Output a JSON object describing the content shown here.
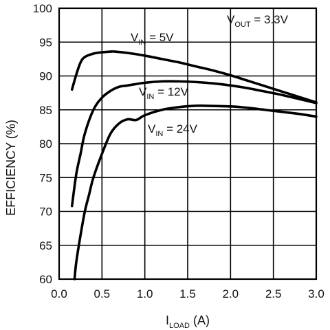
{
  "chart_data": {
    "type": "line",
    "xlabel": "I",
    "xlabel_sub": "LOAD",
    "xlabel_unit": " (A)",
    "ylabel": "EFFICIENCY (%)",
    "xlim": [
      0,
      3.0
    ],
    "ylim": [
      60,
      100
    ],
    "x_ticks": [
      "0.0",
      "0.5",
      "1.0",
      "1.5",
      "2.0",
      "2.5",
      "3.0"
    ],
    "y_ticks": [
      "60",
      "65",
      "70",
      "75",
      "80",
      "85",
      "90",
      "95",
      "100"
    ],
    "grid": true,
    "annotation": {
      "prefix": "V",
      "sub": "OUT",
      "suffix": " = 3.3V",
      "placement": "top-right"
    },
    "series": [
      {
        "name": "5V",
        "label_prefix": "V",
        "label_sub": "IN",
        "label_suffix": " = 5V",
        "x": [
          0.15,
          0.2,
          0.25,
          0.3,
          0.4,
          0.5,
          0.6,
          0.65,
          0.8,
          1.0,
          1.2,
          1.4,
          1.6,
          1.8,
          2.0,
          2.2,
          2.4,
          2.6,
          2.8,
          3.0
        ],
        "y": [
          88.0,
          90.2,
          92.0,
          92.8,
          93.3,
          93.5,
          93.6,
          93.6,
          93.4,
          93.0,
          92.5,
          92.0,
          91.4,
          90.8,
          90.1,
          89.3,
          88.5,
          87.7,
          86.9,
          86.1
        ]
      },
      {
        "name": "12V",
        "label_prefix": "V",
        "label_sub": "IN",
        "label_suffix": " = 12V",
        "x": [
          0.15,
          0.2,
          0.25,
          0.3,
          0.4,
          0.5,
          0.6,
          0.7,
          0.8,
          1.0,
          1.2,
          1.4,
          1.6,
          1.8,
          2.0,
          2.2,
          2.4,
          2.6,
          2.8,
          3.0
        ],
        "y": [
          70.8,
          75.5,
          78.5,
          81.5,
          85.0,
          86.8,
          87.8,
          88.4,
          88.6,
          89.0,
          89.2,
          89.2,
          89.1,
          88.9,
          88.6,
          88.2,
          87.7,
          87.2,
          86.6,
          86.0
        ]
      },
      {
        "name": "24V",
        "label_prefix": "V",
        "label_sub": "IN",
        "label_suffix": " = 24V",
        "x": [
          0.18,
          0.2,
          0.25,
          0.3,
          0.35,
          0.4,
          0.5,
          0.6,
          0.7,
          0.8,
          0.9,
          1.0,
          1.2,
          1.4,
          1.6,
          1.7,
          2.0,
          2.2,
          2.4,
          2.6,
          2.8,
          3.0
        ],
        "y": [
          60.0,
          62.5,
          66.5,
          70.0,
          72.5,
          75.0,
          78.5,
          81.5,
          83.0,
          83.6,
          83.5,
          84.2,
          85.0,
          85.4,
          85.6,
          85.6,
          85.5,
          85.3,
          85.0,
          84.7,
          84.4,
          84.0
        ]
      }
    ]
  }
}
